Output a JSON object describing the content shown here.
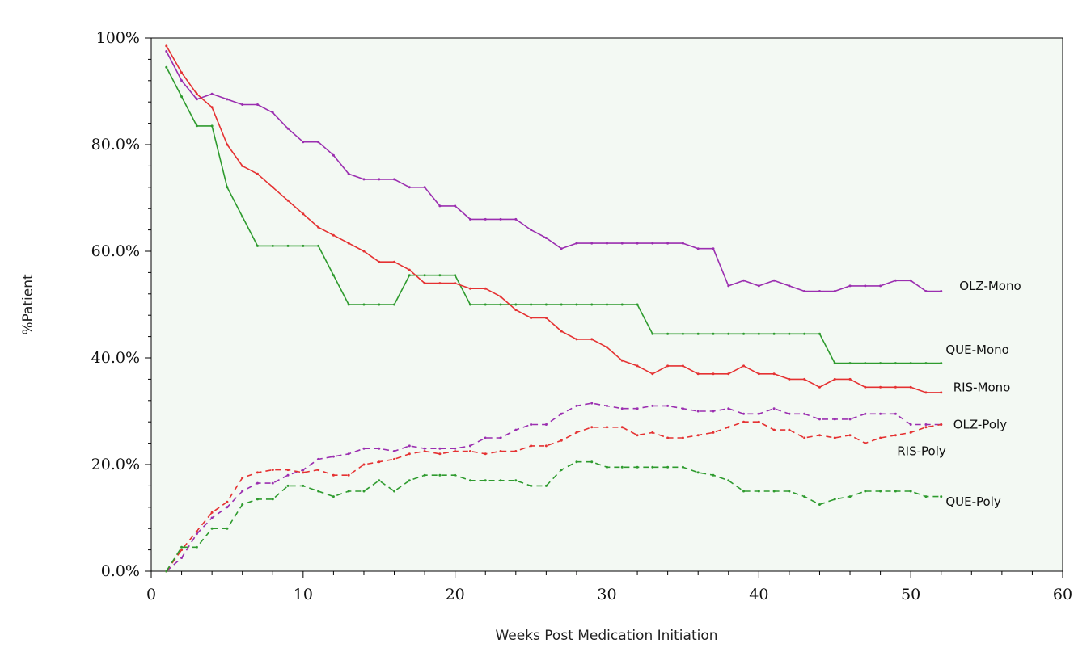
{
  "chart_data": {
    "type": "line",
    "title": "",
    "xlabel": "Weeks Post Medication Initiation",
    "ylabel": "%Patient",
    "xlim": [
      0,
      60
    ],
    "ylim": [
      0,
      100
    ],
    "x_ticks": [
      0,
      10,
      20,
      30,
      40,
      50,
      60
    ],
    "y_ticks": [
      0,
      20,
      40,
      60,
      80,
      100
    ],
    "y_tick_labels": [
      "0.0%",
      "20.0%",
      "40.0%",
      "60.0%",
      "80.0%",
      "100%"
    ],
    "grid": false,
    "legend": "inline labels at right end of lines",
    "background_color": "#f3f9f3",
    "series": [
      {
        "name": "OLZ-Mono",
        "color": "#9b2fb0",
        "dash": "solid",
        "points": [
          [
            1,
            97.5
          ],
          [
            2,
            92
          ],
          [
            3,
            88.5
          ],
          [
            4,
            89.5
          ],
          [
            5,
            88.5
          ],
          [
            6,
            87.5
          ],
          [
            7,
            87.5
          ],
          [
            8,
            86
          ],
          [
            9,
            83
          ],
          [
            10,
            80.5
          ],
          [
            11,
            80.5
          ],
          [
            12,
            78
          ],
          [
            13,
            74.5
          ],
          [
            14,
            73.5
          ],
          [
            15,
            73.5
          ],
          [
            16,
            73.5
          ],
          [
            17,
            72
          ],
          [
            18,
            72
          ],
          [
            19,
            68.5
          ],
          [
            20,
            68.5
          ],
          [
            21,
            66
          ],
          [
            22,
            66
          ],
          [
            23,
            66
          ],
          [
            24,
            66
          ],
          [
            25,
            64
          ],
          [
            26,
            62.5
          ],
          [
            27,
            60.5
          ],
          [
            28,
            61.5
          ],
          [
            29,
            61.5
          ],
          [
            30,
            61.5
          ],
          [
            31,
            61.5
          ],
          [
            32,
            61.5
          ],
          [
            33,
            61.5
          ],
          [
            34,
            61.5
          ],
          [
            35,
            61.5
          ],
          [
            36,
            60.5
          ],
          [
            37,
            60.5
          ],
          [
            38,
            53.5
          ],
          [
            39,
            54.5
          ],
          [
            40,
            53.5
          ],
          [
            41,
            54.5
          ],
          [
            42,
            53.5
          ],
          [
            43,
            52.5
          ],
          [
            44,
            52.5
          ],
          [
            45,
            52.5
          ],
          [
            46,
            53.5
          ],
          [
            47,
            53.5
          ],
          [
            48,
            53.5
          ],
          [
            49,
            54.5
          ],
          [
            50,
            54.5
          ],
          [
            51,
            52.5
          ],
          [
            52,
            52.5
          ]
        ]
      },
      {
        "name": "QUE-Mono",
        "color": "#2e9b2e",
        "dash": "solid",
        "points": [
          [
            1,
            94.5
          ],
          [
            2,
            89
          ],
          [
            3,
            83.5
          ],
          [
            4,
            83.5
          ],
          [
            5,
            72
          ],
          [
            6,
            66.5
          ],
          [
            7,
            61
          ],
          [
            8,
            61
          ],
          [
            9,
            61
          ],
          [
            10,
            61
          ],
          [
            11,
            61
          ],
          [
            12,
            55.5
          ],
          [
            13,
            50
          ],
          [
            14,
            50
          ],
          [
            15,
            50
          ],
          [
            16,
            50
          ],
          [
            17,
            55.5
          ],
          [
            18,
            55.5
          ],
          [
            19,
            55.5
          ],
          [
            20,
            55.5
          ],
          [
            21,
            50
          ],
          [
            22,
            50
          ],
          [
            23,
            50
          ],
          [
            24,
            50
          ],
          [
            25,
            50
          ],
          [
            26,
            50
          ],
          [
            27,
            50
          ],
          [
            28,
            50
          ],
          [
            29,
            50
          ],
          [
            30,
            50
          ],
          [
            31,
            50
          ],
          [
            32,
            50
          ],
          [
            33,
            44.5
          ],
          [
            34,
            44.5
          ],
          [
            35,
            44.5
          ],
          [
            36,
            44.5
          ],
          [
            37,
            44.5
          ],
          [
            38,
            44.5
          ],
          [
            39,
            44.5
          ],
          [
            40,
            44.5
          ],
          [
            41,
            44.5
          ],
          [
            42,
            44.5
          ],
          [
            43,
            44.5
          ],
          [
            44,
            44.5
          ],
          [
            45,
            39
          ],
          [
            46,
            39
          ],
          [
            47,
            39
          ],
          [
            48,
            39
          ],
          [
            49,
            39
          ],
          [
            50,
            39
          ],
          [
            51,
            39
          ],
          [
            52,
            39
          ]
        ]
      },
      {
        "name": "RIS-Mono",
        "color": "#e53232",
        "dash": "solid",
        "points": [
          [
            1,
            98.5
          ],
          [
            2,
            93.5
          ],
          [
            3,
            89.5
          ],
          [
            4,
            87
          ],
          [
            5,
            80
          ],
          [
            6,
            76
          ],
          [
            7,
            74.5
          ],
          [
            8,
            72
          ],
          [
            9,
            69.5
          ],
          [
            10,
            67
          ],
          [
            11,
            64.5
          ],
          [
            12,
            63
          ],
          [
            13,
            61.5
          ],
          [
            14,
            60
          ],
          [
            15,
            58
          ],
          [
            16,
            58
          ],
          [
            17,
            56.5
          ],
          [
            18,
            54
          ],
          [
            19,
            54
          ],
          [
            20,
            54
          ],
          [
            21,
            53
          ],
          [
            22,
            53
          ],
          [
            23,
            51.5
          ],
          [
            24,
            49
          ],
          [
            25,
            47.5
          ],
          [
            26,
            47.5
          ],
          [
            27,
            45
          ],
          [
            28,
            43.5
          ],
          [
            29,
            43.5
          ],
          [
            30,
            42
          ],
          [
            31,
            39.5
          ],
          [
            32,
            38.5
          ],
          [
            33,
            37
          ],
          [
            34,
            38.5
          ],
          [
            35,
            38.5
          ],
          [
            36,
            37
          ],
          [
            37,
            37
          ],
          [
            38,
            37
          ],
          [
            39,
            38.5
          ],
          [
            40,
            37
          ],
          [
            41,
            37
          ],
          [
            42,
            36
          ],
          [
            43,
            36
          ],
          [
            44,
            34.5
          ],
          [
            45,
            36
          ],
          [
            46,
            36
          ],
          [
            47,
            34.5
          ],
          [
            48,
            34.5
          ],
          [
            49,
            34.5
          ],
          [
            50,
            34.5
          ],
          [
            51,
            33.5
          ],
          [
            52,
            33.5
          ]
        ]
      },
      {
        "name": "OLZ-Poly",
        "color": "#9b2fb0",
        "dash": "dashed",
        "points": [
          [
            1,
            0
          ],
          [
            2,
            2.5
          ],
          [
            3,
            7
          ],
          [
            4,
            10
          ],
          [
            5,
            12
          ],
          [
            6,
            15
          ],
          [
            7,
            16.5
          ],
          [
            8,
            16.5
          ],
          [
            9,
            18
          ],
          [
            10,
            19
          ],
          [
            11,
            21
          ],
          [
            12,
            21.5
          ],
          [
            13,
            22
          ],
          [
            14,
            23
          ],
          [
            15,
            23
          ],
          [
            16,
            22.5
          ],
          [
            17,
            23.5
          ],
          [
            18,
            23
          ],
          [
            19,
            23
          ],
          [
            20,
            23
          ],
          [
            21,
            23.5
          ],
          [
            22,
            25
          ],
          [
            23,
            25
          ],
          [
            24,
            26.5
          ],
          [
            25,
            27.5
          ],
          [
            26,
            27.5
          ],
          [
            27,
            29.5
          ],
          [
            28,
            31
          ],
          [
            29,
            31.5
          ],
          [
            30,
            31
          ],
          [
            31,
            30.5
          ],
          [
            32,
            30.5
          ],
          [
            33,
            31
          ],
          [
            34,
            31
          ],
          [
            35,
            30.5
          ],
          [
            36,
            30
          ],
          [
            37,
            30
          ],
          [
            38,
            30.5
          ],
          [
            39,
            29.5
          ],
          [
            40,
            29.5
          ],
          [
            41,
            30.5
          ],
          [
            42,
            29.5
          ],
          [
            43,
            29.5
          ],
          [
            44,
            28.5
          ],
          [
            45,
            28.5
          ],
          [
            46,
            28.5
          ],
          [
            47,
            29.5
          ],
          [
            48,
            29.5
          ],
          [
            49,
            29.5
          ],
          [
            50,
            27.5
          ],
          [
            51,
            27.5
          ],
          [
            52,
            27.5
          ]
        ]
      },
      {
        "name": "RIS-Poly",
        "color": "#e53232",
        "dash": "dashed",
        "points": [
          [
            1,
            0
          ],
          [
            2,
            4
          ],
          [
            3,
            7.5
          ],
          [
            4,
            11
          ],
          [
            5,
            13
          ],
          [
            6,
            17.5
          ],
          [
            7,
            18.5
          ],
          [
            8,
            19
          ],
          [
            9,
            19
          ],
          [
            10,
            18.5
          ],
          [
            11,
            19
          ],
          [
            12,
            18
          ],
          [
            13,
            18
          ],
          [
            14,
            20
          ],
          [
            15,
            20.5
          ],
          [
            16,
            21
          ],
          [
            17,
            22
          ],
          [
            18,
            22.5
          ],
          [
            19,
            22
          ],
          [
            20,
            22.5
          ],
          [
            21,
            22.5
          ],
          [
            22,
            22
          ],
          [
            23,
            22.5
          ],
          [
            24,
            22.5
          ],
          [
            25,
            23.5
          ],
          [
            26,
            23.5
          ],
          [
            27,
            24.5
          ],
          [
            28,
            26
          ],
          [
            29,
            27
          ],
          [
            30,
            27
          ],
          [
            31,
            27
          ],
          [
            32,
            25.5
          ],
          [
            33,
            26
          ],
          [
            34,
            25
          ],
          [
            35,
            25
          ],
          [
            36,
            25.5
          ],
          [
            37,
            26
          ],
          [
            38,
            27
          ],
          [
            39,
            28
          ],
          [
            40,
            28
          ],
          [
            41,
            26.5
          ],
          [
            42,
            26.5
          ],
          [
            43,
            25
          ],
          [
            44,
            25.5
          ],
          [
            45,
            25
          ],
          [
            46,
            25.5
          ],
          [
            47,
            24
          ],
          [
            48,
            25
          ],
          [
            49,
            25.5
          ],
          [
            50,
            26
          ],
          [
            51,
            27
          ],
          [
            52,
            27.5
          ]
        ]
      },
      {
        "name": "QUE-Poly",
        "color": "#2e9b2e",
        "dash": "dashed",
        "points": [
          [
            1,
            0
          ],
          [
            2,
            4.5
          ],
          [
            3,
            4.5
          ],
          [
            4,
            8
          ],
          [
            5,
            8
          ],
          [
            6,
            12.5
          ],
          [
            7,
            13.5
          ],
          [
            8,
            13.5
          ],
          [
            9,
            16
          ],
          [
            10,
            16
          ],
          [
            11,
            15
          ],
          [
            12,
            14
          ],
          [
            13,
            15
          ],
          [
            14,
            15
          ],
          [
            15,
            17
          ],
          [
            16,
            15
          ],
          [
            17,
            17
          ],
          [
            18,
            18
          ],
          [
            19,
            18
          ],
          [
            20,
            18
          ],
          [
            21,
            17
          ],
          [
            22,
            17
          ],
          [
            23,
            17
          ],
          [
            24,
            17
          ],
          [
            25,
            16
          ],
          [
            26,
            16
          ],
          [
            27,
            19
          ],
          [
            28,
            20.5
          ],
          [
            29,
            20.5
          ],
          [
            30,
            19.5
          ],
          [
            31,
            19.5
          ],
          [
            32,
            19.5
          ],
          [
            33,
            19.5
          ],
          [
            34,
            19.5
          ],
          [
            35,
            19.5
          ],
          [
            36,
            18.5
          ],
          [
            37,
            18
          ],
          [
            38,
            17
          ],
          [
            39,
            15
          ],
          [
            40,
            15
          ],
          [
            41,
            15
          ],
          [
            42,
            15
          ],
          [
            43,
            14
          ],
          [
            44,
            12.5
          ],
          [
            45,
            13.5
          ],
          [
            46,
            14
          ],
          [
            47,
            15
          ],
          [
            48,
            15
          ],
          [
            49,
            15
          ],
          [
            50,
            15
          ],
          [
            51,
            14
          ],
          [
            52,
            14
          ]
        ]
      }
    ],
    "labels": [
      {
        "text": "OLZ-Mono",
        "series": "OLZ-Mono",
        "x": 53.2,
        "y": 53.5
      },
      {
        "text": "QUE-Mono",
        "series": "QUE-Mono",
        "x": 52.3,
        "y": 41.5
      },
      {
        "text": "RIS-Mono",
        "series": "RIS-Mono",
        "x": 52.8,
        "y": 34.5
      },
      {
        "text": "OLZ-Poly",
        "series": "OLZ-Poly",
        "x": 52.8,
        "y": 27.5
      },
      {
        "text": "RIS-Poly",
        "series": "RIS-Poly",
        "x": 49.1,
        "y": 22.5
      },
      {
        "text": "QUE-Poly",
        "series": "QUE-Poly",
        "x": 52.3,
        "y": 13
      }
    ]
  }
}
